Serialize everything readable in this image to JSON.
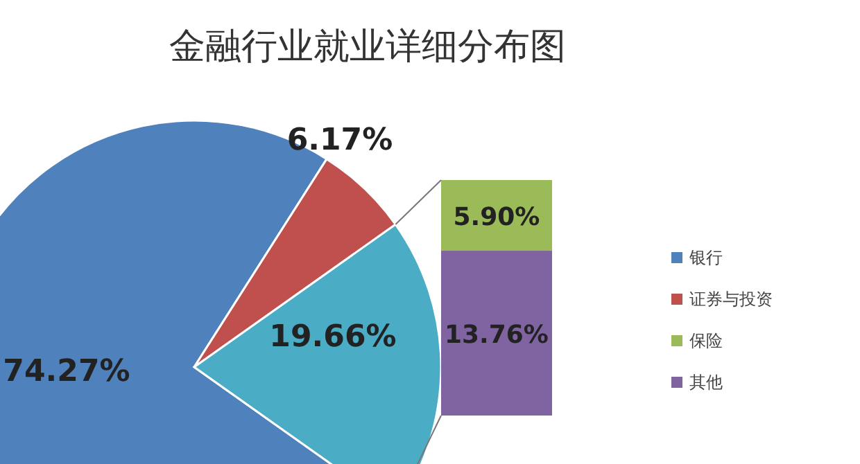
{
  "chart_data": [
    {
      "type": "pie",
      "title": "金融行业就业详细分布图",
      "categories": [
        "银行",
        "证券与投资",
        null
      ],
      "values": [
        74.27,
        6.17,
        19.66
      ],
      "value_labels": [
        "74.27%",
        "6.17%",
        "19.66%"
      ],
      "colors": [
        "#4f81bd",
        "#c0504d",
        "#4bacc6"
      ],
      "legend": "right"
    },
    {
      "type": "bar",
      "stacked": true,
      "categories": [
        null
      ],
      "series": [
        {
          "name": "其他",
          "color": "#8064a2",
          "values": [
            13.76
          ],
          "value_labels": [
            "13.76%"
          ]
        },
        {
          "name": "保险",
          "color": "#9bbb59",
          "values": [
            5.9
          ],
          "value_labels": [
            "5.90%"
          ]
        }
      ],
      "legend": "right"
    }
  ]
}
